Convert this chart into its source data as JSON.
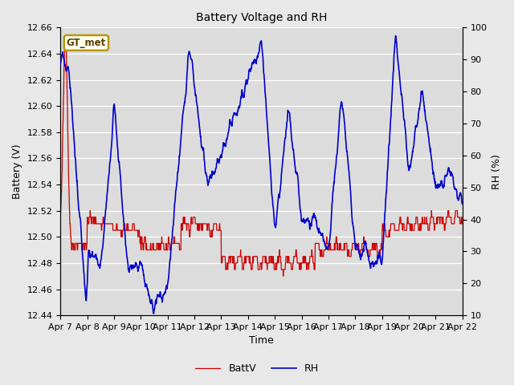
{
  "title": "Battery Voltage and RH",
  "xlabel": "Time",
  "ylabel_left": "Battery (V)",
  "ylabel_right": "RH (%)",
  "legend_label": "GT_met",
  "x_tick_labels": [
    "Apr 7",
    "Apr 8",
    "Apr 9",
    "Apr 10",
    "Apr 11",
    "Apr 12",
    "Apr 13",
    "Apr 14",
    "Apr 15",
    "Apr 16",
    "Apr 17",
    "Apr 18",
    "Apr 19",
    "Apr 20",
    "Apr 21",
    "Apr 22"
  ],
  "ylim_left": [
    12.44,
    12.66
  ],
  "ylim_right": [
    10,
    100
  ],
  "yticks_left": [
    12.44,
    12.46,
    12.48,
    12.5,
    12.52,
    12.54,
    12.56,
    12.58,
    12.6,
    12.62,
    12.64,
    12.66
  ],
  "yticks_right": [
    10,
    20,
    30,
    40,
    50,
    60,
    70,
    80,
    90,
    100
  ],
  "batt_color": "#cc0000",
  "rh_color": "#0000cc",
  "fig_bg_color": "#e8e8e8",
  "plot_bg_color": "#dcdcdc",
  "grid_color": "#ffffff",
  "legend_box_edgecolor": "#b8960c",
  "legend_box_facecolor": "#fffff0",
  "title_fontsize": 10,
  "label_fontsize": 9,
  "tick_fontsize": 8
}
